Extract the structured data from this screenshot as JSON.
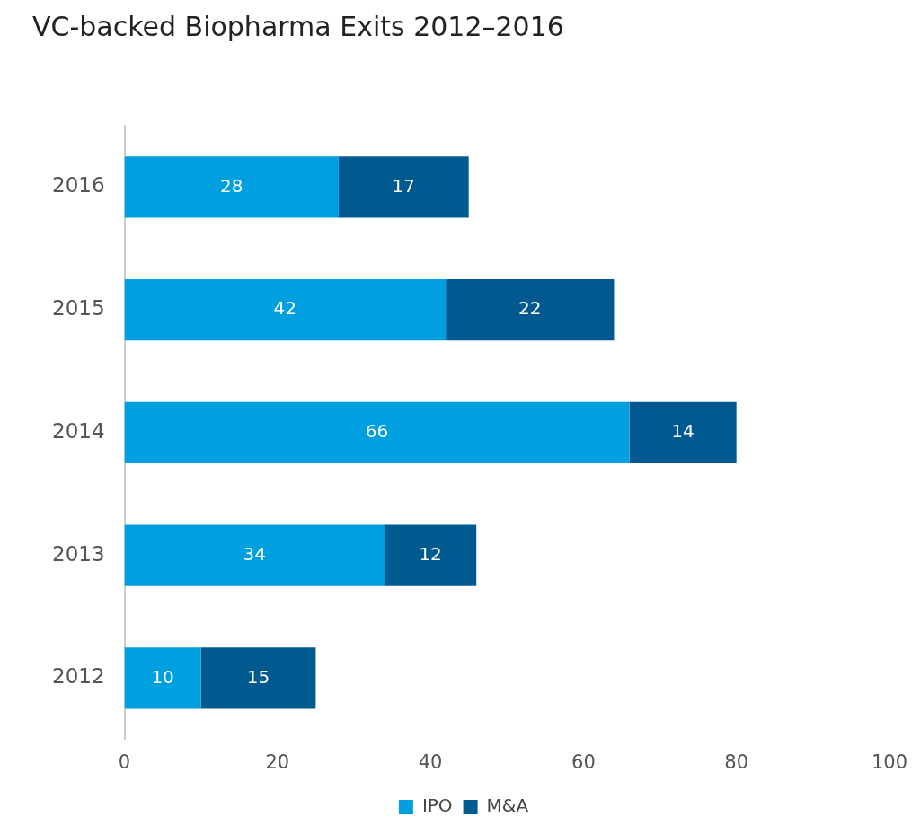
{
  "chart_data": {
    "type": "bar",
    "title": "VC-backed Biopharma Exits 2012–2016",
    "orientation": "horizontal",
    "stacked": true,
    "categories": [
      "2016",
      "2015",
      "2014",
      "2013",
      "2012"
    ],
    "series": [
      {
        "name": "IPO",
        "color": "#009fdf",
        "values": [
          28,
          42,
          66,
          34,
          10
        ]
      },
      {
        "name": "M&A",
        "color": "#005a8f",
        "values": [
          17,
          22,
          14,
          12,
          15
        ]
      }
    ],
    "xlim": [
      0,
      100
    ],
    "xticks": [
      0,
      20,
      40,
      60,
      80,
      100
    ],
    "grid": false,
    "legend": "bottom",
    "data_labels": true
  }
}
